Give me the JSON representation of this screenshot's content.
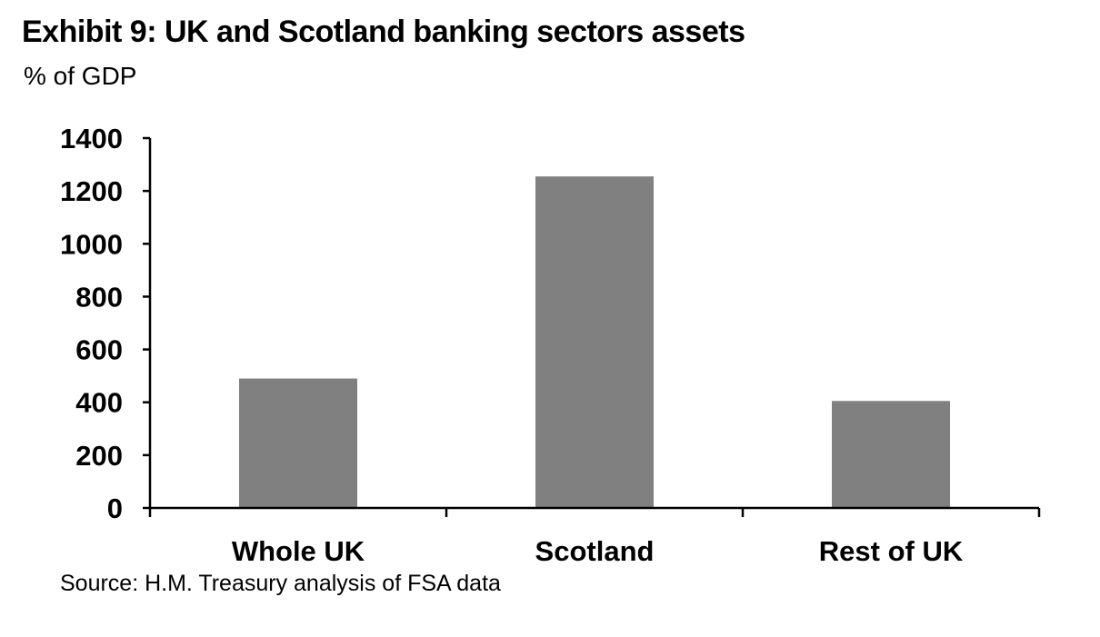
{
  "header": {
    "title": "Exhibit 9: UK and Scotland banking sectors assets",
    "subtitle": "% of GDP"
  },
  "footer": {
    "source": "Source: H.M. Treasury analysis of FSA data"
  },
  "chart_data": {
    "type": "bar",
    "title": "Exhibit 9: UK and Scotland banking sectors assets",
    "subtitle": "% of GDP",
    "categories": [
      "Whole UK",
      "Scotland",
      "Rest of UK"
    ],
    "values": [
      490,
      1255,
      405
    ],
    "ylim": [
      0,
      1400
    ],
    "yticks": [
      0,
      200,
      400,
      600,
      800,
      1000,
      1200,
      1400
    ],
    "xlabel": "",
    "ylabel": "",
    "bar_color": "#808080",
    "grid": false,
    "legend": "none"
  }
}
